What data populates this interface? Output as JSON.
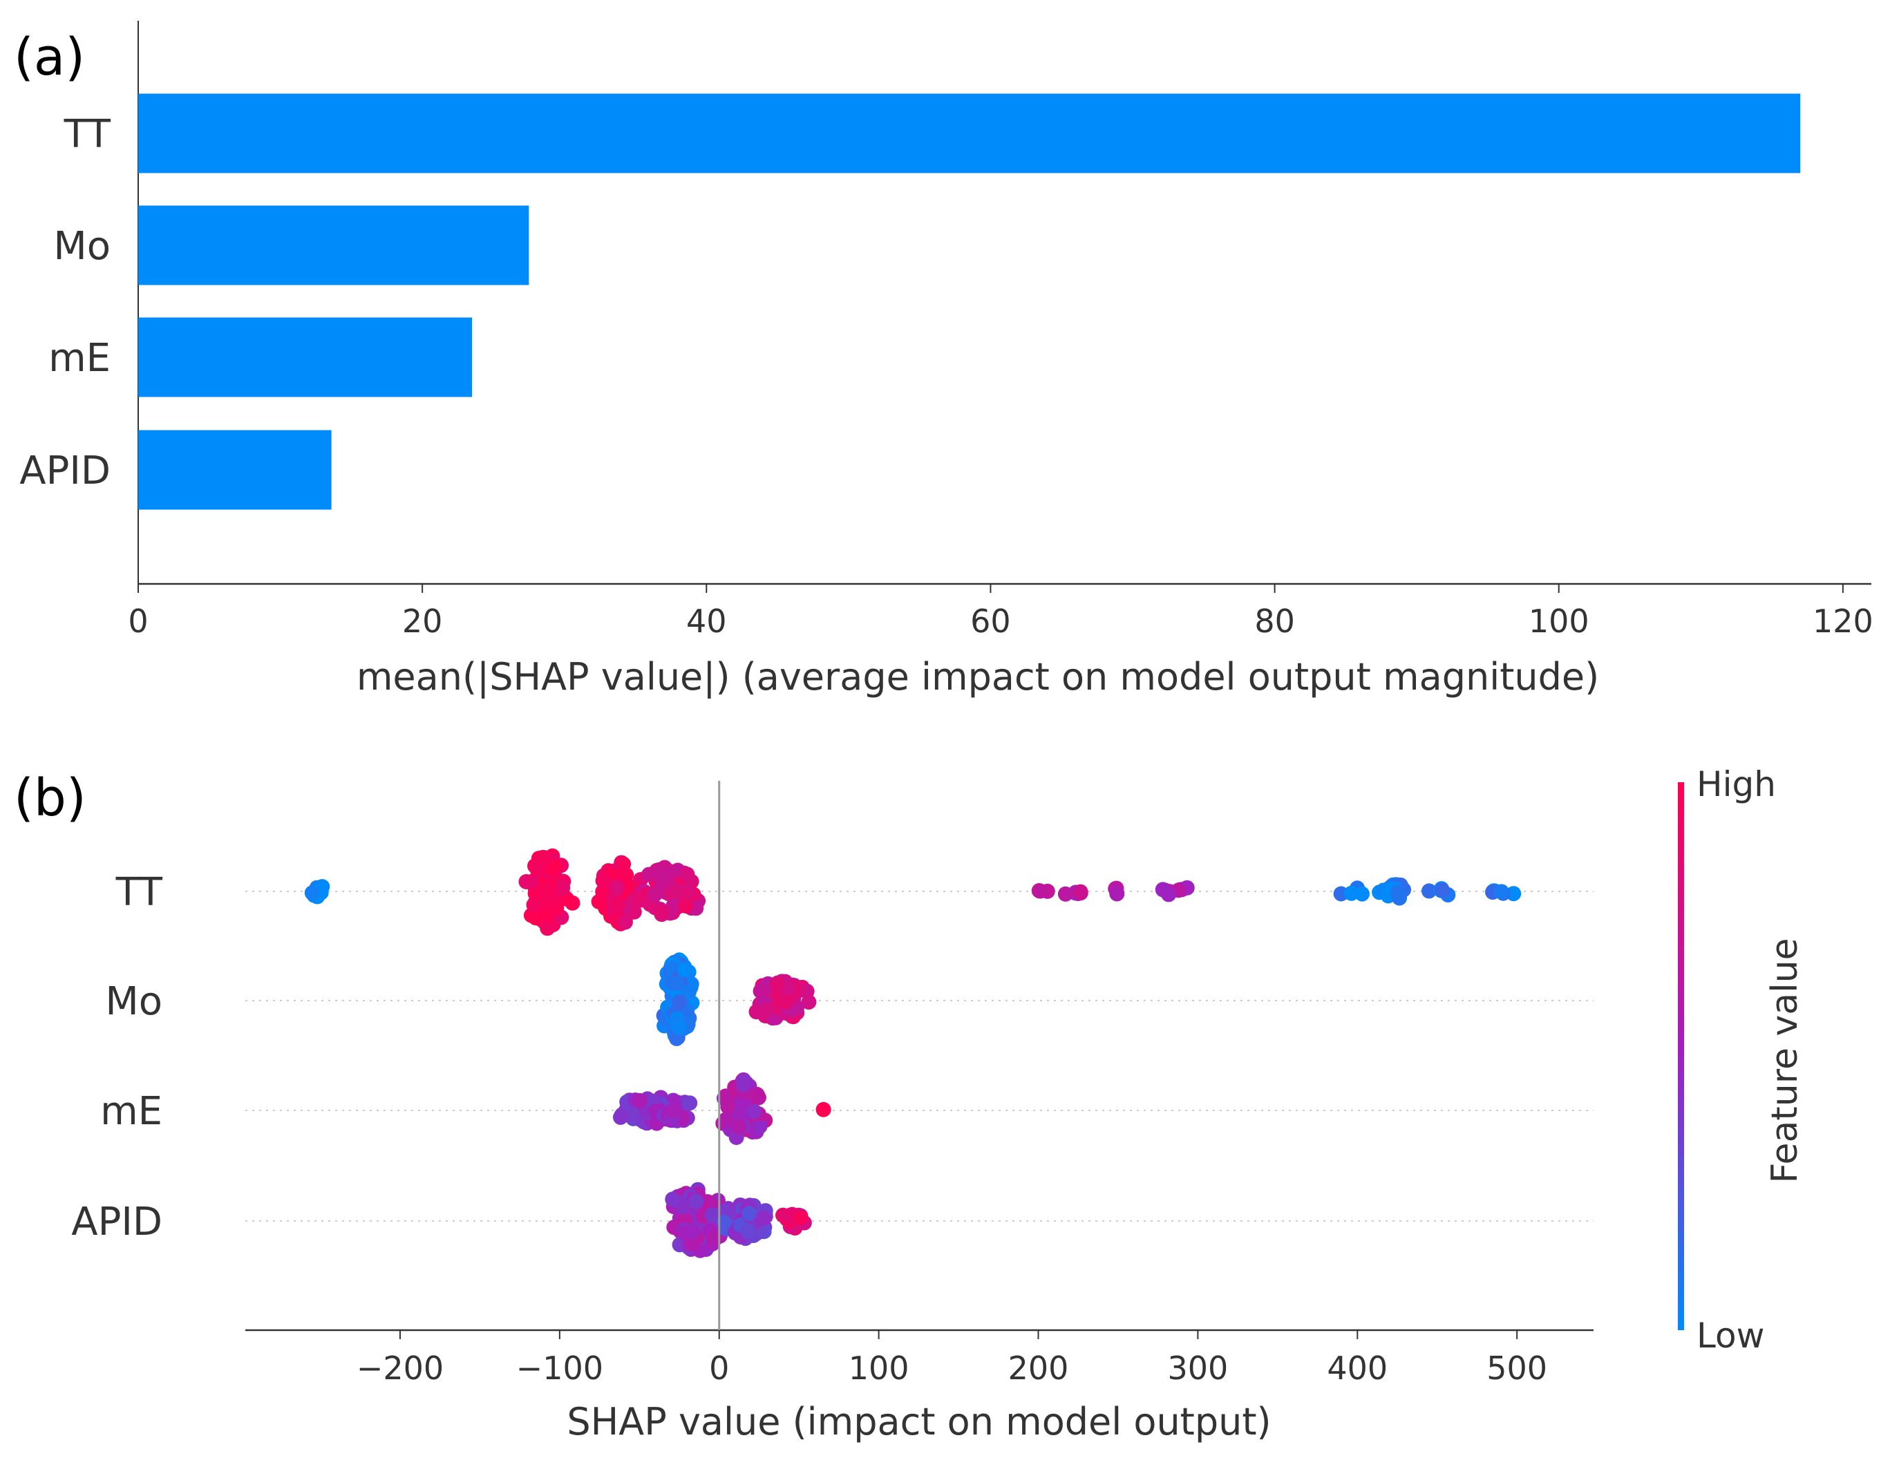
{
  "chart_data": [
    {
      "type": "bar",
      "orientation": "horizontal",
      "panel_label": "(a)",
      "categories": [
        "TT",
        "Mo",
        "mE",
        "APID"
      ],
      "values": [
        117,
        27.5,
        23.5,
        13.6
      ],
      "xlabel": "mean(|SHAP value|) (average impact on model output magnitude)",
      "xticks": [
        0,
        20,
        40,
        60,
        80,
        100,
        120
      ],
      "xlim": [
        0,
        122
      ],
      "bar_color": "#008bfb"
    },
    {
      "type": "scatter",
      "subtype": "beeswarm",
      "panel_label": "(b)",
      "categories": [
        "TT",
        "Mo",
        "mE",
        "APID"
      ],
      "xlabel": "SHAP value (impact on model output)",
      "xticks": [
        -200,
        -100,
        0,
        100,
        200,
        300,
        400,
        500
      ],
      "xlim": [
        -297,
        548
      ],
      "colorbar": {
        "label": "Feature value",
        "high": "High",
        "low": "Low",
        "high_color": "#ff0052",
        "low_color": "#008bfb"
      },
      "series": [
        {
          "name": "TT",
          "clusters": [
            {
              "center": -250,
              "spread": 8,
              "count": 12,
              "width": 3,
              "value": 0.02
            },
            {
              "center": -107,
              "spread": 18,
              "count": 70,
              "width": 34,
              "value": 0.98
            },
            {
              "center": -62,
              "spread": 16,
              "count": 60,
              "width": 30,
              "value": 0.9
            },
            {
              "center": -30,
              "spread": 24,
              "count": 65,
              "width": 22,
              "value": 0.8
            },
            {
              "center": 200,
              "spread": 10,
              "count": 3,
              "width": 1,
              "value": 0.62
            },
            {
              "center": 223,
              "spread": 10,
              "count": 6,
              "width": 1,
              "value": 0.6
            },
            {
              "center": 250,
              "spread": 6,
              "count": 3,
              "width": 1,
              "value": 0.6
            },
            {
              "center": 290,
              "spread": 26,
              "count": 8,
              "width": 1,
              "value": 0.58
            },
            {
              "center": 400,
              "spread": 18,
              "count": 5,
              "width": 1,
              "value": 0.03
            },
            {
              "center": 425,
              "spread": 12,
              "count": 20,
              "width": 4,
              "value": 0.03
            },
            {
              "center": 455,
              "spread": 14,
              "count": 5,
              "width": 1,
              "value": 0.05
            },
            {
              "center": 490,
              "spread": 22,
              "count": 6,
              "width": 2,
              "value": 0.05
            }
          ]
        },
        {
          "name": "Mo",
          "clusters": [
            {
              "center": -26,
              "spread": 12,
              "count": 110,
              "width": 36,
              "value": 0.05
            },
            {
              "center": 38,
              "spread": 24,
              "count": 85,
              "width": 16,
              "value": 0.75
            }
          ]
        },
        {
          "name": "mE",
          "clusters": [
            {
              "center": -40,
              "spread": 32,
              "count": 75,
              "width": 10,
              "value": 0.45
            },
            {
              "center": 15,
              "spread": 18,
              "count": 85,
              "width": 26,
              "value": 0.55
            },
            {
              "center": 65,
              "spread": 2,
              "count": 1,
              "width": 0,
              "value": 0.95
            }
          ]
        },
        {
          "name": "APID",
          "clusters": [
            {
              "center": -15,
              "spread": 22,
              "count": 95,
              "width": 28,
              "value": 0.5
            },
            {
              "center": 18,
              "spread": 20,
              "count": 70,
              "width": 14,
              "value": 0.35
            },
            {
              "center": 46,
              "spread": 10,
              "count": 14,
              "width": 5,
              "value": 0.85
            }
          ]
        }
      ]
    }
  ]
}
